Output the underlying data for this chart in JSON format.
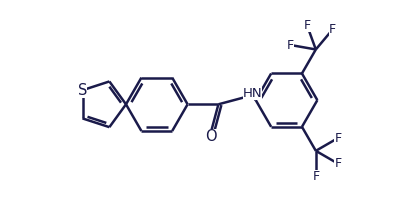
{
  "bg_color": "#ffffff",
  "line_color": "#1a1a4a",
  "text_color": "#1a1a4a",
  "bond_lw": 1.8,
  "font_size": 9.5,
  "xlim": [
    0,
    13
  ],
  "ylim": [
    -2.5,
    4.0
  ],
  "figsize": [
    4.06,
    2.24
  ],
  "dpi": 100
}
